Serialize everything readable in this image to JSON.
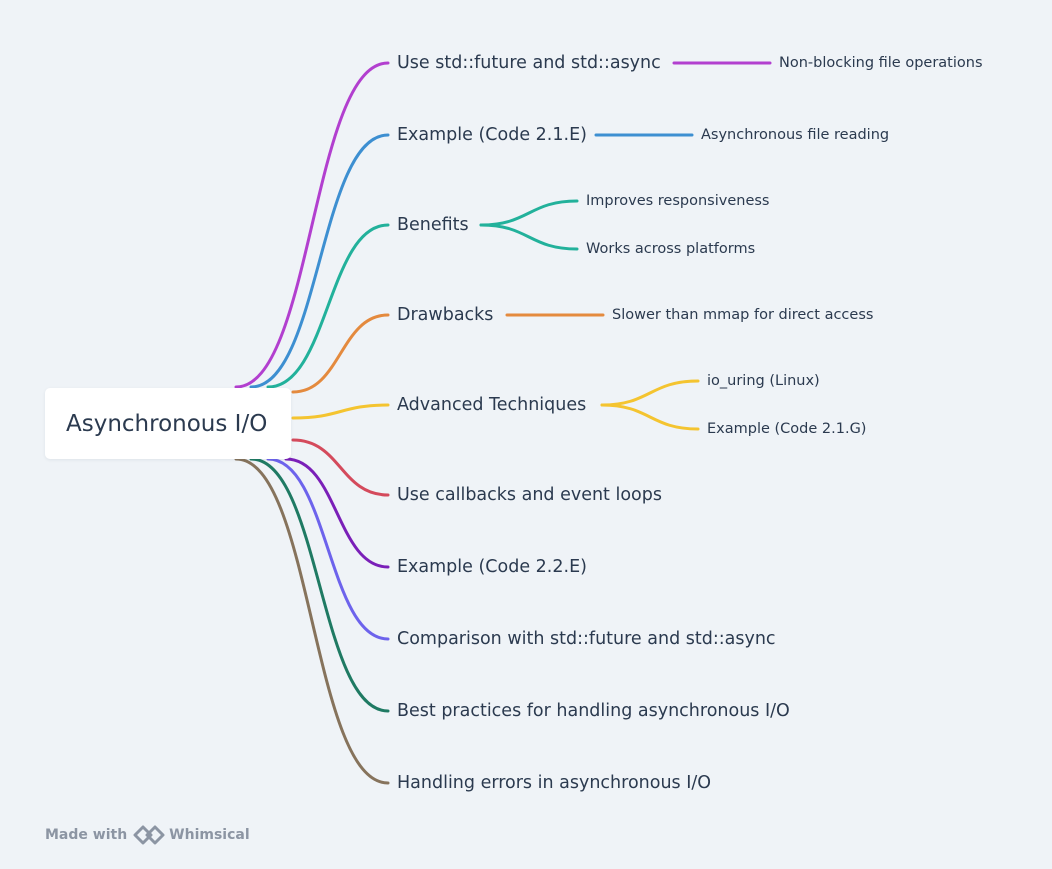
{
  "root": {
    "label": "Asynchronous I/O"
  },
  "branches": [
    {
      "label": "Use std::future and std::async",
      "color": "#b23fcf",
      "children": [
        "Non-blocking file operations"
      ]
    },
    {
      "label": "Example (Code 2.1.E)",
      "color": "#3d8fd1",
      "children": [
        "Asynchronous file reading"
      ]
    },
    {
      "label": "Benefits",
      "color": "#22b19b",
      "children": [
        "Improves responsiveness",
        "Works across platforms"
      ]
    },
    {
      "label": "Drawbacks",
      "color": "#e48a3e",
      "children": [
        "Slower than mmap for direct access"
      ]
    },
    {
      "label": "Advanced Techniques",
      "color": "#f4c430",
      "children": [
        "io_uring (Linux)",
        "Example (Code 2.1.G)"
      ]
    },
    {
      "label": "Use callbacks and event loops",
      "color": "#d44a5c",
      "children": []
    },
    {
      "label": "Example (Code 2.2.E)",
      "color": "#7a1fb8",
      "children": []
    },
    {
      "label": "Comparison with std::future and std::async",
      "color": "#6d63ec",
      "children": []
    },
    {
      "label": "Best practices for handling asynchronous I/O",
      "color": "#1f7a63",
      "children": []
    },
    {
      "label": "Handling errors in asynchronous I/O",
      "color": "#86735c",
      "children": []
    }
  ],
  "footer": {
    "prefix": "Made with",
    "brand": "Whimsical",
    "logo_icon": "whimsical-logo-icon"
  }
}
